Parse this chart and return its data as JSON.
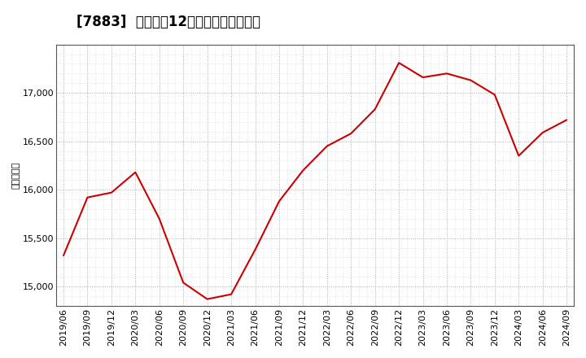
{
  "title": "[7883]  売上高の12か月移動合計の推移",
  "ylabel": "（百万円）",
  "line_color": "#cc0000",
  "background_color": "#ffffff",
  "plot_bg_color": "#ffffff",
  "grid_color": "#aaaaaa",
  "dates": [
    "2019/06",
    "2019/09",
    "2019/12",
    "2020/03",
    "2020/06",
    "2020/09",
    "2020/12",
    "2021/03",
    "2021/06",
    "2021/09",
    "2021/12",
    "2022/03",
    "2022/06",
    "2022/09",
    "2022/12",
    "2023/03",
    "2023/06",
    "2023/09",
    "2023/12",
    "2024/03",
    "2024/06",
    "2024/09"
  ],
  "values": [
    15320,
    15920,
    15970,
    16180,
    15700,
    15040,
    14870,
    14920,
    15380,
    15880,
    16200,
    16450,
    16580,
    16830,
    17310,
    17160,
    17200,
    17130,
    16980,
    16350,
    16590,
    16720
  ],
  "ylim": [
    14800,
    17500
  ],
  "yticks": [
    15000,
    15500,
    16000,
    16500,
    17000
  ],
  "title_fontsize": 12,
  "ylabel_fontsize": 8,
  "tick_fontsize": 8
}
